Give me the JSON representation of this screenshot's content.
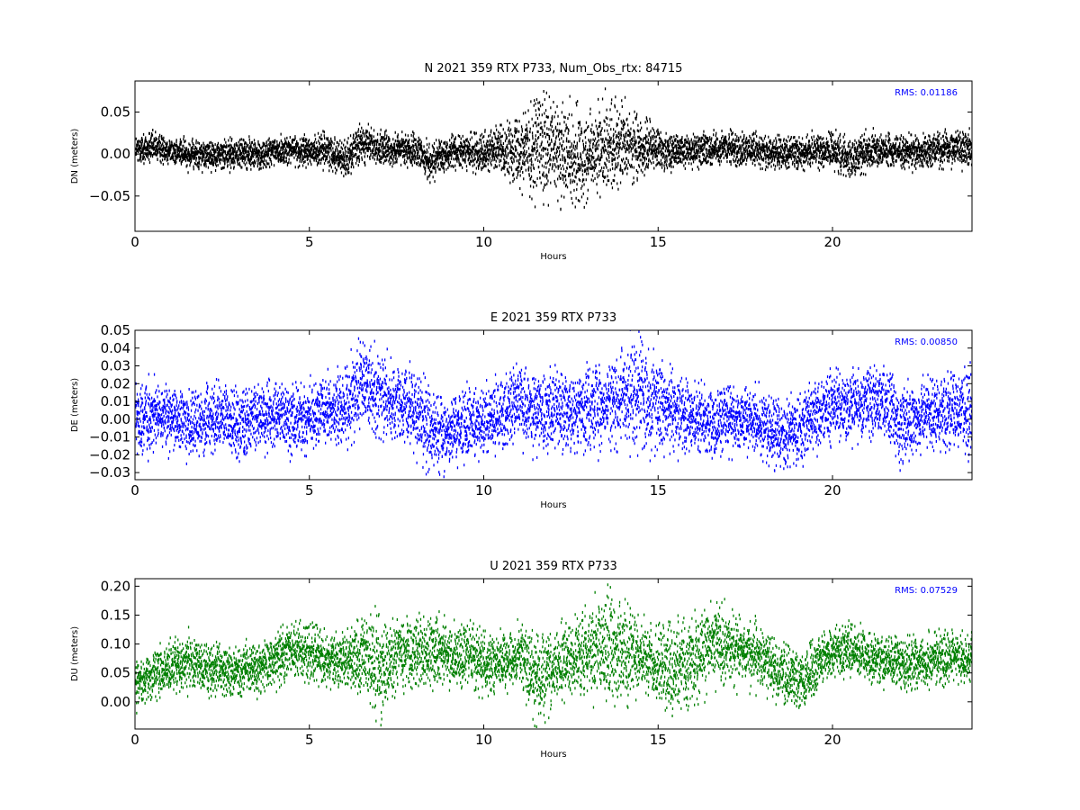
{
  "chart_data": [
    {
      "type": "scatter",
      "title": "N 2021 359 RTX  P733, Num_Obs_rtx: 84715",
      "xlabel": "Hours",
      "ylabel": "DN (meters)",
      "xlim": [
        0,
        24
      ],
      "ylim": [
        -0.092,
        0.087
      ],
      "xticks": [
        "0",
        "5",
        "10",
        "15",
        "20"
      ],
      "yticks": [
        "0.05",
        "0.00",
        "−0.05"
      ],
      "color": "#000000",
      "annotation": "RMS:  0.01186",
      "annotation_color": "#0000ff",
      "grid": false,
      "series": [
        {
          "x": [
            0,
            0.5,
            1,
            1.5,
            2,
            2.5,
            3,
            3.5,
            4,
            4.5,
            5,
            5.5,
            6,
            6.5,
            7,
            7.5,
            8,
            8.5,
            9,
            9.5,
            10,
            10.5,
            11,
            11.5,
            12,
            12.5,
            13,
            13.5,
            14,
            14.5,
            15,
            15.5,
            16,
            16.5,
            17,
            17.5,
            18,
            18.5,
            19,
            19.5,
            20,
            20.5,
            21,
            21.5,
            22,
            22.5,
            23,
            23.5,
            24
          ],
          "center": [
            0.005,
            0.008,
            0.004,
            0.0,
            -0.002,
            0.0,
            0.001,
            -0.002,
            0.003,
            0.005,
            0.003,
            0.004,
            -0.006,
            0.012,
            0.006,
            0.005,
            0.005,
            -0.01,
            0.003,
            0.002,
            0.004,
            0.005,
            0.006,
            0.008,
            0.002,
            -0.005,
            0.0,
            0.012,
            0.01,
            0.008,
            0.006,
            0.003,
            0.004,
            0.006,
            0.006,
            0.005,
            0.004,
            0.001,
            0.002,
            0.003,
            0.004,
            -0.005,
            0.003,
            0.004,
            0.004,
            0.003,
            0.006,
            0.008,
            0.005
          ],
          "spread": [
            0.008,
            0.008,
            0.007,
            0.008,
            0.008,
            0.008,
            0.009,
            0.008,
            0.008,
            0.008,
            0.008,
            0.009,
            0.01,
            0.01,
            0.009,
            0.009,
            0.009,
            0.01,
            0.009,
            0.009,
            0.011,
            0.012,
            0.02,
            0.03,
            0.028,
            0.028,
            0.025,
            0.025,
            0.022,
            0.016,
            0.012,
            0.009,
            0.009,
            0.009,
            0.009,
            0.009,
            0.009,
            0.009,
            0.009,
            0.009,
            0.01,
            0.012,
            0.01,
            0.009,
            0.009,
            0.009,
            0.01,
            0.01,
            0.01
          ]
        }
      ]
    },
    {
      "type": "scatter",
      "title": "E 2021 359 RTX  P733",
      "xlabel": "Hours",
      "ylabel": "DE (meters)",
      "xlim": [
        0,
        24
      ],
      "ylim": [
        -0.034,
        0.05
      ],
      "xticks": [
        "0",
        "5",
        "10",
        "15",
        "20"
      ],
      "yticks": [
        "0.05",
        "0.04",
        "0.03",
        "0.02",
        "0.01",
        "0.00",
        "−0.01",
        "−0.02",
        "−0.03"
      ],
      "color": "#0000ff",
      "annotation": "RMS:  0.00850",
      "annotation_color": "#0000ff",
      "grid": false,
      "series": [
        {
          "x": [
            0,
            0.5,
            1,
            1.5,
            2,
            2.5,
            3,
            3.5,
            4,
            4.5,
            5,
            5.5,
            6,
            6.5,
            7,
            7.5,
            8,
            8.5,
            9,
            9.5,
            10,
            10.5,
            11,
            11.5,
            12,
            12.5,
            13,
            13.5,
            14,
            14.5,
            15,
            15.5,
            16,
            16.5,
            17,
            17.5,
            18,
            18.5,
            19,
            19.5,
            20,
            20.5,
            21,
            21.5,
            22,
            22.5,
            23,
            23.5,
            24
          ],
          "center": [
            0.0,
            0.002,
            0.0,
            -0.003,
            -0.002,
            0.001,
            -0.004,
            0.002,
            0.003,
            0.0,
            0.001,
            0.004,
            0.007,
            0.02,
            0.013,
            0.008,
            0.006,
            -0.008,
            -0.005,
            -0.003,
            -0.001,
            0.004,
            0.008,
            0.006,
            0.004,
            0.003,
            0.005,
            0.008,
            0.012,
            0.014,
            0.009,
            0.004,
            0.001,
            -0.003,
            0.002,
            0.0,
            -0.004,
            -0.01,
            -0.005,
            0.003,
            0.006,
            0.008,
            0.01,
            0.01,
            -0.004,
            0.002,
            0.003,
            0.006,
            0.004
          ],
          "spread": [
            0.009,
            0.009,
            0.008,
            0.009,
            0.009,
            0.008,
            0.009,
            0.009,
            0.008,
            0.009,
            0.009,
            0.009,
            0.01,
            0.011,
            0.011,
            0.01,
            0.01,
            0.011,
            0.009,
            0.009,
            0.009,
            0.009,
            0.01,
            0.011,
            0.011,
            0.01,
            0.011,
            0.012,
            0.014,
            0.016,
            0.012,
            0.01,
            0.009,
            0.009,
            0.009,
            0.009,
            0.009,
            0.009,
            0.009,
            0.009,
            0.009,
            0.009,
            0.009,
            0.009,
            0.01,
            0.009,
            0.01,
            0.01,
            0.011
          ]
        }
      ]
    },
    {
      "type": "scatter",
      "title": "U 2021 359 RTX  P733",
      "xlabel": "Hours",
      "ylabel": "DU (meters)",
      "xlim": [
        0,
        24
      ],
      "ylim": [
        -0.047,
        0.213
      ],
      "xticks": [
        "0",
        "5",
        "10",
        "15",
        "20"
      ],
      "yticks": [
        "0.20",
        "0.15",
        "0.10",
        "0.05",
        "0.00"
      ],
      "color": "#008000",
      "annotation": "RMS:  0.07529",
      "annotation_color": "#0000ff",
      "grid": false,
      "series": [
        {
          "x": [
            0,
            0.5,
            1,
            1.5,
            2,
            2.5,
            3,
            3.5,
            4,
            4.5,
            5,
            5.5,
            6,
            6.5,
            7,
            7.5,
            8,
            8.5,
            9,
            9.5,
            10,
            10.5,
            11,
            11.5,
            12,
            12.5,
            13,
            13.5,
            14,
            14.5,
            15,
            15.5,
            16,
            16.5,
            17,
            17.5,
            18,
            18.5,
            19,
            19.5,
            20,
            20.5,
            21,
            21.5,
            22,
            22.5,
            23,
            23.5,
            24
          ],
          "center": [
            0.03,
            0.045,
            0.06,
            0.065,
            0.06,
            0.055,
            0.055,
            0.06,
            0.07,
            0.09,
            0.085,
            0.07,
            0.07,
            0.08,
            0.06,
            0.08,
            0.085,
            0.095,
            0.08,
            0.08,
            0.065,
            0.07,
            0.075,
            0.04,
            0.06,
            0.07,
            0.09,
            0.1,
            0.085,
            0.08,
            0.065,
            0.055,
            0.07,
            0.1,
            0.095,
            0.085,
            0.07,
            0.055,
            0.03,
            0.065,
            0.085,
            0.09,
            0.075,
            0.07,
            0.065,
            0.07,
            0.075,
            0.08,
            0.07
          ],
          "spread": [
            0.02,
            0.02,
            0.02,
            0.022,
            0.02,
            0.02,
            0.02,
            0.02,
            0.022,
            0.025,
            0.025,
            0.02,
            0.022,
            0.035,
            0.04,
            0.03,
            0.03,
            0.03,
            0.025,
            0.025,
            0.025,
            0.022,
            0.025,
            0.035,
            0.03,
            0.03,
            0.035,
            0.045,
            0.04,
            0.03,
            0.03,
            0.04,
            0.035,
            0.03,
            0.03,
            0.028,
            0.025,
            0.025,
            0.025,
            0.022,
            0.022,
            0.022,
            0.02,
            0.02,
            0.02,
            0.02,
            0.02,
            0.02,
            0.02
          ]
        }
      ]
    }
  ]
}
